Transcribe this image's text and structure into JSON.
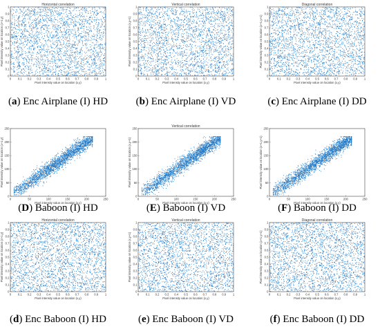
{
  "figure": {
    "panels": [
      {
        "caption_letter": "a",
        "caption_text": " Enc Airplane (I) HD"
      },
      {
        "caption_letter": "b",
        "caption_text": " Enc Airplane (I) VD"
      },
      {
        "caption_letter": "c",
        "caption_text": " Enc Airplane (I) DD"
      },
      {
        "caption_letter": "D",
        "caption_text": " Baboon (I) HD"
      },
      {
        "caption_letter": "E",
        "caption_text": " Baboon (I) VD"
      },
      {
        "caption_letter": "F",
        "caption_text": " Baboon (I) DD"
      },
      {
        "caption_letter": "d",
        "caption_text": " Enc Baboon (I) HD"
      },
      {
        "caption_letter": "e",
        "caption_text": " Enc Baboon (I) VD"
      },
      {
        "caption_letter": "f",
        "caption_text": " Enc Baboon (I) DD"
      }
    ]
  },
  "chart_data": [
    {
      "type": "scatter",
      "title": "Horizontal correlation",
      "xlabel": "Pixel intensity value on location (x,y)",
      "ylabel": "Pixel intensity value on location (x+1,y)",
      "xlim": [
        0,
        1
      ],
      "ylim": [
        0,
        1
      ],
      "xticks": [
        "0",
        "0.1",
        "0.2",
        "0.3",
        "0.4",
        "0.5",
        "0.6",
        "0.7",
        "0.8",
        "0.9",
        "1"
      ],
      "yticks": [
        "0",
        "0.1",
        "0.2",
        "0.3",
        "0.4",
        "0.5",
        "0.6",
        "0.7",
        "0.8",
        "0.9",
        "1"
      ],
      "distribution": "uniform",
      "color": "#1f77c4"
    },
    {
      "type": "scatter",
      "title": "Vertical correlation",
      "xlabel": "Pixel intensity value on location (x,y)",
      "ylabel": "Pixel intensity value on location (x,y+1)",
      "xlim": [
        0,
        1
      ],
      "ylim": [
        0,
        1
      ],
      "xticks": [
        "0",
        "0.1",
        "0.2",
        "0.3",
        "0.4",
        "0.5",
        "0.6",
        "0.7",
        "0.8",
        "0.9",
        "1"
      ],
      "yticks": [
        "0",
        "0.1",
        "0.2",
        "0.3",
        "0.4",
        "0.5",
        "0.6",
        "0.7",
        "0.8",
        "0.9",
        "1"
      ],
      "distribution": "uniform",
      "color": "#1f77c4"
    },
    {
      "type": "scatter",
      "title": "Diagonal correlation",
      "xlabel": "Pixel intensity value on location (x,y)",
      "ylabel": "Pixel intensity value on location (x+1,y+1)",
      "xlim": [
        0,
        1
      ],
      "ylim": [
        0,
        1
      ],
      "xticks": [
        "0",
        "0.1",
        "0.2",
        "0.3",
        "0.4",
        "0.5",
        "0.6",
        "0.7",
        "0.8",
        "0.9",
        "1"
      ],
      "yticks": [
        "0",
        "0.1",
        "0.2",
        "0.3",
        "0.4",
        "0.5",
        "0.6",
        "0.7",
        "0.8",
        "0.9",
        "1"
      ],
      "distribution": "uniform",
      "color": "#1f77c4"
    },
    {
      "type": "scatter",
      "title": "",
      "xlabel": "Pixel intensity value on location (x,y)",
      "ylabel": "Pixel intensity value on location (x+1,y)",
      "xlim": [
        0,
        250
      ],
      "ylim": [
        0,
        250
      ],
      "xticks": [
        "0",
        "50",
        "100",
        "150",
        "200",
        "250"
      ],
      "yticks": [
        "0",
        "50",
        "100",
        "150",
        "200",
        "250"
      ],
      "distribution": "diagonal",
      "data_range": [
        10,
        215
      ],
      "color": "#1f77c4"
    },
    {
      "type": "scatter",
      "title": "Vertical correlation",
      "xlabel": "Pixel intensity value on location (x,y)",
      "ylabel": "Pixel intensity value on location (x,y+1)",
      "xlim": [
        0,
        250
      ],
      "ylim": [
        0,
        250
      ],
      "xticks": [
        "0",
        "50",
        "100",
        "150",
        "200",
        "250"
      ],
      "yticks": [
        "0",
        "50",
        "100",
        "150",
        "200",
        "250"
      ],
      "distribution": "diagonal",
      "data_range": [
        10,
        215
      ],
      "color": "#1f77c4"
    },
    {
      "type": "scatter",
      "title": "",
      "xlabel": "Pixel intensity value on location (x,y)",
      "ylabel": "Pixel intensity value on location (x+1,y+1)",
      "xlim": [
        0,
        250
      ],
      "ylim": [
        0,
        250
      ],
      "xticks": [
        "0",
        "50",
        "100",
        "150",
        "200",
        "250"
      ],
      "yticks": [
        "0",
        "50",
        "100",
        "150",
        "200",
        "250"
      ],
      "distribution": "diagonal",
      "data_range": [
        10,
        215
      ],
      "color": "#1f77c4"
    },
    {
      "type": "scatter",
      "title": "Horizontal correlation",
      "xlabel": "Pixel intensity value on location (x,y)",
      "ylabel": "Pixel intensity value on location (x+1,y)",
      "xlim": [
        0,
        1
      ],
      "ylim": [
        0,
        1
      ],
      "xticks": [
        "0",
        "0.1",
        "0.2",
        "0.3",
        "0.4",
        "0.5",
        "0.6",
        "0.7",
        "0.8",
        "0.9",
        "1"
      ],
      "yticks": [
        "0",
        "0.1",
        "0.2",
        "0.3",
        "0.4",
        "0.5",
        "0.6",
        "0.7",
        "0.8",
        "0.9",
        "1"
      ],
      "distribution": "uniform",
      "color": "#1f77c4"
    },
    {
      "type": "scatter",
      "title": "Vertical correlation",
      "xlabel": "Pixel intensity value on location (x,y)",
      "ylabel": "Pixel intensity value on location (x,y+1)",
      "xlim": [
        0,
        1
      ],
      "ylim": [
        0,
        1
      ],
      "xticks": [
        "0",
        "0.1",
        "0.2",
        "0.3",
        "0.4",
        "0.5",
        "0.6",
        "0.7",
        "0.8",
        "0.9",
        "1"
      ],
      "yticks": [
        "0",
        "0.1",
        "0.2",
        "0.3",
        "0.4",
        "0.5",
        "0.6",
        "0.7",
        "0.8",
        "0.9",
        "1"
      ],
      "distribution": "uniform",
      "color": "#1f77c4"
    },
    {
      "type": "scatter",
      "title": "Diagonal correlation",
      "xlabel": "Pixel intensity value on location (x,y)",
      "ylabel": "Pixel intensity value on location (x+1,y+1)",
      "xlim": [
        0,
        1
      ],
      "ylim": [
        0,
        1
      ],
      "xticks": [
        "0",
        "0.1",
        "0.2",
        "0.3",
        "0.4",
        "0.5",
        "0.6",
        "0.7",
        "0.8",
        "0.9",
        "1"
      ],
      "yticks": [
        "0",
        "0.1",
        "0.2",
        "0.3",
        "0.4",
        "0.5",
        "0.6",
        "0.7",
        "0.8",
        "0.9",
        "1"
      ],
      "distribution": "uniform",
      "color": "#1f77c4"
    }
  ]
}
